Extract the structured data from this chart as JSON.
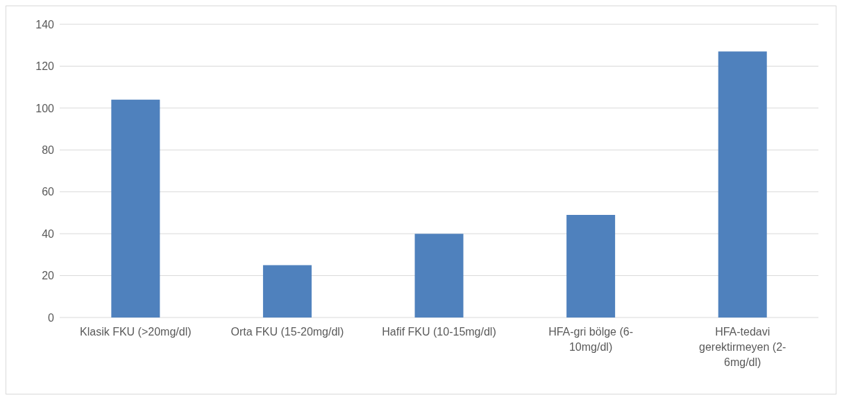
{
  "chart_data": {
    "type": "bar",
    "categories": [
      "Klasik FKU (>20mg/dl)",
      "Orta FKU (15-20mg/dl)",
      "Hafif FKU (10-15mg/dl)",
      "HFA-gri bölge (6-10mg/dl)",
      "HFA-tedavi gerektirmeyen (2-6mg/dl)"
    ],
    "values": [
      104,
      25,
      40,
      49,
      127
    ],
    "color": "#4f81bd",
    "ylim": [
      0,
      140
    ],
    "yticks": [
      0,
      20,
      40,
      60,
      80,
      100,
      120,
      140
    ],
    "grid": "y",
    "legend": false
  }
}
